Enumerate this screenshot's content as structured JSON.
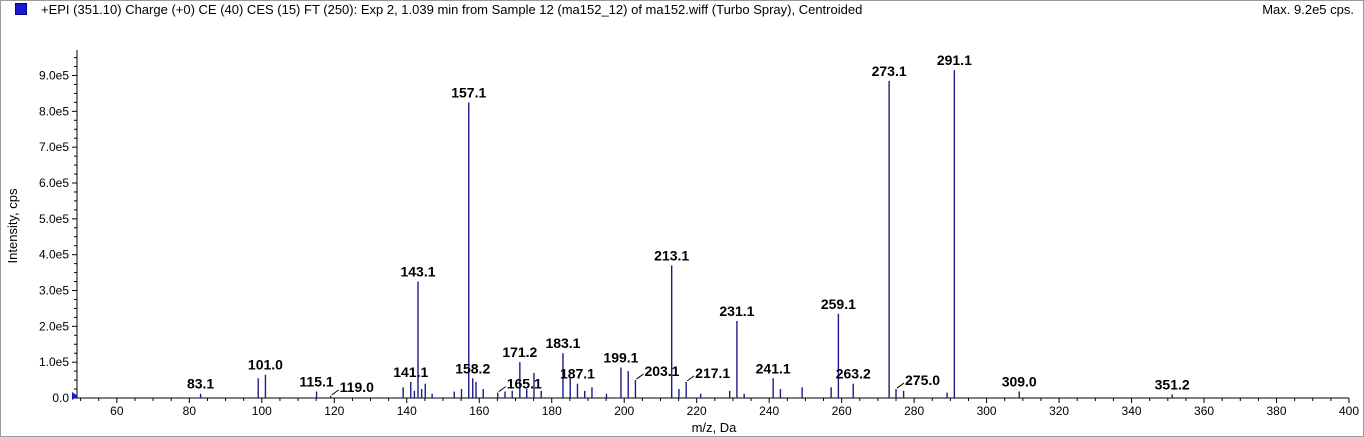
{
  "header": {
    "title": "+EPI (351.10) Charge (+0) CE (40) CES (15) FT (250): Exp 2, 1.039 min from Sample 12 (ma152_12) of ma152.wiff (Turbo Spray), Centroided",
    "max_label": "Max. 9.2e5 cps."
  },
  "colors": {
    "series": "#1a1a8c",
    "legend": "#1a1acc",
    "axis": "#000000"
  },
  "chart_data": {
    "type": "bar",
    "xlabel": "m/z, Da",
    "ylabel": "Intensity, cps",
    "xlim": [
      49,
      400
    ],
    "ylim": [
      0,
      960000
    ],
    "x_ticks": [
      60,
      80,
      100,
      120,
      140,
      160,
      180,
      200,
      220,
      240,
      260,
      280,
      300,
      320,
      340,
      360,
      380,
      400
    ],
    "y_ticks": [
      {
        "value": 0,
        "label": "0.0"
      },
      {
        "value": 100000,
        "label": "1.0e5"
      },
      {
        "value": 200000,
        "label": "2.0e5"
      },
      {
        "value": 300000,
        "label": "3.0e5"
      },
      {
        "value": 400000,
        "label": "4.0e5"
      },
      {
        "value": 500000,
        "label": "5.0e5"
      },
      {
        "value": 600000,
        "label": "6.0e5"
      },
      {
        "value": 700000,
        "label": "7.0e5"
      },
      {
        "value": 800000,
        "label": "8.0e5"
      },
      {
        "value": 900000,
        "label": "9.0e5"
      }
    ],
    "peaks": [
      {
        "x": 83.1,
        "y": 12000
      },
      {
        "x": 99.0,
        "y": 55000
      },
      {
        "x": 101.0,
        "y": 65000
      },
      {
        "x": 115.1,
        "y": 18000
      },
      {
        "x": 119.0,
        "y": 6000
      },
      {
        "x": 139.0,
        "y": 30000
      },
      {
        "x": 141.1,
        "y": 45000
      },
      {
        "x": 142.1,
        "y": 20000
      },
      {
        "x": 143.1,
        "y": 325000
      },
      {
        "x": 144.1,
        "y": 25000
      },
      {
        "x": 145.1,
        "y": 40000
      },
      {
        "x": 147.0,
        "y": 12000
      },
      {
        "x": 153.1,
        "y": 18000
      },
      {
        "x": 155.1,
        "y": 25000
      },
      {
        "x": 157.1,
        "y": 825000
      },
      {
        "x": 158.2,
        "y": 55000
      },
      {
        "x": 159.1,
        "y": 45000
      },
      {
        "x": 161.1,
        "y": 25000
      },
      {
        "x": 165.1,
        "y": 15000
      },
      {
        "x": 167.1,
        "y": 18000
      },
      {
        "x": 169.1,
        "y": 20000
      },
      {
        "x": 171.2,
        "y": 100000
      },
      {
        "x": 173.1,
        "y": 25000
      },
      {
        "x": 175.1,
        "y": 70000
      },
      {
        "x": 177.1,
        "y": 20000
      },
      {
        "x": 183.1,
        "y": 125000
      },
      {
        "x": 185.1,
        "y": 55000
      },
      {
        "x": 187.1,
        "y": 40000
      },
      {
        "x": 189.1,
        "y": 20000
      },
      {
        "x": 191.1,
        "y": 30000
      },
      {
        "x": 195.1,
        "y": 12000
      },
      {
        "x": 199.1,
        "y": 85000
      },
      {
        "x": 201.1,
        "y": 75000
      },
      {
        "x": 203.1,
        "y": 50000
      },
      {
        "x": 213.1,
        "y": 370000
      },
      {
        "x": 215.1,
        "y": 25000
      },
      {
        "x": 217.1,
        "y": 45000
      },
      {
        "x": 221.1,
        "y": 12000
      },
      {
        "x": 229.1,
        "y": 20000
      },
      {
        "x": 231.1,
        "y": 215000
      },
      {
        "x": 233.1,
        "y": 12000
      },
      {
        "x": 241.1,
        "y": 55000
      },
      {
        "x": 243.1,
        "y": 25000
      },
      {
        "x": 249.1,
        "y": 30000
      },
      {
        "x": 257.1,
        "y": 30000
      },
      {
        "x": 259.1,
        "y": 235000
      },
      {
        "x": 263.2,
        "y": 40000
      },
      {
        "x": 273.1,
        "y": 885000
      },
      {
        "x": 275.0,
        "y": 25000
      },
      {
        "x": 277.1,
        "y": 20000
      },
      {
        "x": 289.1,
        "y": 15000
      },
      {
        "x": 291.1,
        "y": 915000
      },
      {
        "x": 309.0,
        "y": 18000
      },
      {
        "x": 351.2,
        "y": 10000
      }
    ],
    "annotations": [
      {
        "text": "83.1",
        "x": 83.1,
        "y": 12000
      },
      {
        "text": "101.0",
        "x": 101.0,
        "y": 65000
      },
      {
        "text": "115.1",
        "x": 115.1,
        "y": 18000
      },
      {
        "text": "119.0",
        "x": 119.0,
        "y": 6000,
        "leader": true
      },
      {
        "text": "141.1",
        "x": 141.1,
        "y": 45000
      },
      {
        "text": "143.1",
        "x": 143.1,
        "y": 325000
      },
      {
        "text": "157.1",
        "x": 157.1,
        "y": 825000
      },
      {
        "text": "158.2",
        "x": 158.2,
        "y": 55000
      },
      {
        "text": "165.1",
        "x": 165.1,
        "y": 15000,
        "leader": true
      },
      {
        "text": "171.2",
        "x": 171.2,
        "y": 100000
      },
      {
        "text": "183.1",
        "x": 183.1,
        "y": 125000
      },
      {
        "text": "187.1",
        "x": 187.1,
        "y": 40000
      },
      {
        "text": "199.1",
        "x": 199.1,
        "y": 85000
      },
      {
        "text": "203.1",
        "x": 203.1,
        "y": 50000,
        "leader": true
      },
      {
        "text": "213.1",
        "x": 213.1,
        "y": 370000
      },
      {
        "text": "217.1",
        "x": 217.1,
        "y": 45000,
        "leader": true
      },
      {
        "text": "231.1",
        "x": 231.1,
        "y": 215000
      },
      {
        "text": "241.1",
        "x": 241.1,
        "y": 55000
      },
      {
        "text": "259.1",
        "x": 259.1,
        "y": 235000
      },
      {
        "text": "263.2",
        "x": 263.2,
        "y": 40000
      },
      {
        "text": "273.1",
        "x": 273.1,
        "y": 885000
      },
      {
        "text": "275.0",
        "x": 275.0,
        "y": 25000,
        "leader": true
      },
      {
        "text": "291.1",
        "x": 291.1,
        "y": 915000
      },
      {
        "text": "309.0",
        "x": 309.0,
        "y": 18000
      },
      {
        "text": "351.2",
        "x": 351.2,
        "y": 10000
      }
    ]
  }
}
